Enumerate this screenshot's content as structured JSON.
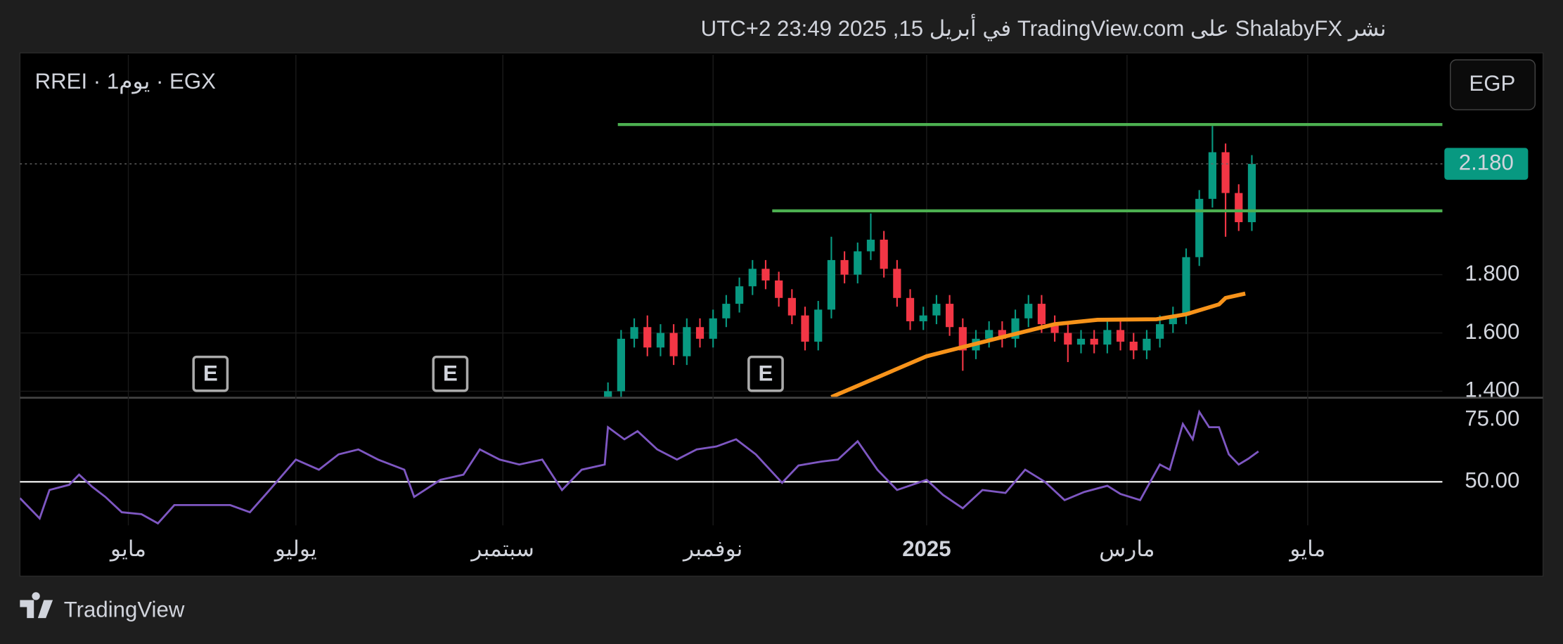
{
  "header": {
    "text": "نشر ShalabyFX على TradingView.com في أبريل 15, 2025 23:49 UTC+2"
  },
  "footer": {
    "brand": "TradingView"
  },
  "chart_data": [
    {
      "type": "candlestick",
      "title": "RREI · 1يوم · EGX",
      "currency": "EGP",
      "xlim": [
        -276,
        157
      ],
      "ylim": [
        1.381,
        2.554
      ],
      "yticks": [
        {
          "value": 1.4,
          "label": "1.400"
        },
        {
          "value": 1.6,
          "label": "1.600"
        },
        {
          "value": 1.8,
          "label": "1.800"
        }
      ],
      "up_color": "#089981",
      "down_color": "#f23645",
      "grid": true,
      "x": [
        -97,
        -93,
        -89,
        -85,
        -81,
        -77,
        -73,
        -69,
        -65,
        -61,
        -57,
        -53,
        -49,
        -45,
        -41,
        -37,
        -33,
        -29,
        -25,
        -21,
        -17,
        -13,
        -9,
        -5,
        -1,
        3,
        7,
        11,
        15,
        19,
        23,
        27,
        31,
        35,
        39,
        43,
        47,
        51,
        55,
        59,
        63,
        67,
        71,
        75,
        79,
        83,
        87,
        91,
        95,
        99
      ],
      "open": [
        1.38,
        1.4,
        1.58,
        1.62,
        1.55,
        1.6,
        1.52,
        1.62,
        1.58,
        1.65,
        1.7,
        1.76,
        1.82,
        1.78,
        1.72,
        1.66,
        1.57,
        1.68,
        1.85,
        1.8,
        1.88,
        1.92,
        1.82,
        1.72,
        1.64,
        1.66,
        1.7,
        1.62,
        1.54,
        1.58,
        1.61,
        1.58,
        1.65,
        1.7,
        1.63,
        1.6,
        1.56,
        1.58,
        1.56,
        1.61,
        1.57,
        1.54,
        1.58,
        1.63,
        1.66,
        1.86,
        2.06,
        2.22,
        2.08,
        1.98
      ],
      "high": [
        1.43,
        1.61,
        1.65,
        1.66,
        1.63,
        1.63,
        1.65,
        1.65,
        1.68,
        1.73,
        1.79,
        1.85,
        1.85,
        1.81,
        1.75,
        1.69,
        1.71,
        1.93,
        1.88,
        1.91,
        2.01,
        1.95,
        1.85,
        1.75,
        1.69,
        1.73,
        1.73,
        1.65,
        1.61,
        1.64,
        1.64,
        1.68,
        1.73,
        1.73,
        1.66,
        1.63,
        1.61,
        1.61,
        1.64,
        1.64,
        1.6,
        1.61,
        1.66,
        1.69,
        1.89,
        2.09,
        2.31,
        2.25,
        2.11,
        2.21
      ],
      "low": [
        1.35,
        1.37,
        1.55,
        1.52,
        1.52,
        1.49,
        1.49,
        1.55,
        1.55,
        1.62,
        1.67,
        1.73,
        1.75,
        1.69,
        1.63,
        1.54,
        1.54,
        1.65,
        1.77,
        1.77,
        1.85,
        1.79,
        1.69,
        1.61,
        1.61,
        1.63,
        1.59,
        1.47,
        1.51,
        1.55,
        1.55,
        1.55,
        1.62,
        1.6,
        1.57,
        1.5,
        1.53,
        1.53,
        1.53,
        1.54,
        1.51,
        1.51,
        1.55,
        1.6,
        1.63,
        1.83,
        2.03,
        1.93,
        1.95,
        1.95
      ],
      "close": [
        1.4,
        1.58,
        1.62,
        1.55,
        1.6,
        1.52,
        1.62,
        1.58,
        1.65,
        1.7,
        1.76,
        1.82,
        1.78,
        1.72,
        1.66,
        1.57,
        1.68,
        1.85,
        1.8,
        1.88,
        1.92,
        1.82,
        1.72,
        1.64,
        1.66,
        1.7,
        1.62,
        1.54,
        1.58,
        1.61,
        1.58,
        1.65,
        1.7,
        1.63,
        1.6,
        1.56,
        1.58,
        1.56,
        1.61,
        1.57,
        1.54,
        1.58,
        1.63,
        1.66,
        1.86,
        2.06,
        2.22,
        2.08,
        1.98,
        2.18
      ],
      "ma": {
        "color": "#f7931a",
        "x": [
          -29,
          0,
          21,
          39,
          52,
          70,
          79,
          89,
          91,
          97
        ],
        "values": [
          1.38,
          1.52,
          1.58,
          1.63,
          1.645,
          1.647,
          1.664,
          1.698,
          1.72,
          1.735
        ]
      },
      "levels": [
        {
          "value": 2.315,
          "label": "2.315",
          "color": "#4caf50",
          "start_x": -94
        },
        {
          "value": 2.019,
          "label": "2.019",
          "color": "#4caf50",
          "start_x": -47
        }
      ],
      "last_price": {
        "value": 2.18,
        "label": "2.180",
        "color": "#089981"
      },
      "events": {
        "label": "E",
        "x": [
          -218,
          -145,
          -49
        ]
      }
    },
    {
      "type": "line",
      "xlim": [
        -276,
        157
      ],
      "ylim": [
        32.4,
        83.6
      ],
      "yticks": [
        {
          "value": 75,
          "label": "75.00"
        },
        {
          "value": 50,
          "label": "50.00"
        }
      ],
      "level_line": {
        "value": 50,
        "color": "#ffffff"
      },
      "xticks": [
        {
          "value": -243,
          "label": "مايو"
        },
        {
          "value": -192,
          "label": "يوليو"
        },
        {
          "value": -129,
          "label": "سبتمبر"
        },
        {
          "value": -65,
          "label": "نوفمبر"
        },
        {
          "value": 0,
          "label": "2025"
        },
        {
          "value": 61,
          "label": "مارس"
        },
        {
          "value": 116,
          "label": "مايو"
        }
      ],
      "series": [
        {
          "color": "#7e57c2",
          "x": [
            -276,
            -270,
            -267,
            -261,
            -258,
            -254,
            -250,
            -245,
            -239,
            -234,
            -229,
            -221,
            -212,
            -206,
            -200,
            -192,
            -185,
            -179,
            -173,
            -167,
            -159,
            -156,
            -148,
            -141,
            -136,
            -130,
            -124,
            -117,
            -111,
            -105,
            -98,
            -97,
            -92,
            -88,
            -82,
            -76,
            -70,
            -64,
            -58,
            -52,
            -44,
            -39,
            -32,
            -27,
            -21,
            -15,
            -9,
            0,
            5,
            11,
            17,
            24,
            30,
            36,
            42,
            48,
            55,
            59,
            65,
            71,
            74,
            78,
            81,
            83,
            86,
            89,
            92,
            95,
            98,
            101
          ],
          "values": [
            43.4,
            35.2,
            46.7,
            48.8,
            52.9,
            48.0,
            43.9,
            37.7,
            36.9,
            33.2,
            40.6,
            40.6,
            40.6,
            37.7,
            46.7,
            59.0,
            54.9,
            61.1,
            63.1,
            59.0,
            54.9,
            43.9,
            50.8,
            52.9,
            63.1,
            59.0,
            57.0,
            59.0,
            46.7,
            54.9,
            57.0,
            72.1,
            67.2,
            70.5,
            63.1,
            59.0,
            63.1,
            64.3,
            67.2,
            61.1,
            49.6,
            56.6,
            58.2,
            59.0,
            66.4,
            54.9,
            46.7,
            50.8,
            44.7,
            39.3,
            46.7,
            45.5,
            54.9,
            50.0,
            42.6,
            45.9,
            48.4,
            45.1,
            42.6,
            57.0,
            54.9,
            73.4,
            67.2,
            78.3,
            72.1,
            72.1,
            61.1,
            57.0,
            59.4,
            62.3
          ]
        }
      ]
    }
  ]
}
